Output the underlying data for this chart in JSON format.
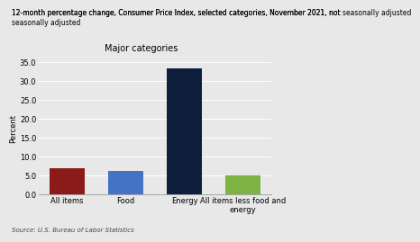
{
  "title": "12-month percentage change, Consumer Price Index, selected categories, November 2021, not seasonally adjusted",
  "subtitle": "Major categories",
  "ylabel": "Percent",
  "source": "Source: U.S. Bureau of Labor Statistics",
  "categories": [
    "All items",
    "Food",
    "Energy",
    "All items less food and\nenergy"
  ],
  "values": [
    6.8,
    6.1,
    33.3,
    4.9
  ],
  "bar_colors": [
    "#8b1a1a",
    "#4472c4",
    "#0d1f3c",
    "#7cb342"
  ],
  "ylim": [
    0,
    35
  ],
  "yticks": [
    0.0,
    5.0,
    10.0,
    15.0,
    20.0,
    25.0,
    30.0,
    35.0
  ],
  "background_color": "#e8e8e8",
  "title_fontsize": 5.5,
  "subtitle_fontsize": 7.0,
  "ylabel_fontsize": 6.0,
  "tick_fontsize": 6.0,
  "xlabel_fontsize": 6.0,
  "source_fontsize": 5.0
}
